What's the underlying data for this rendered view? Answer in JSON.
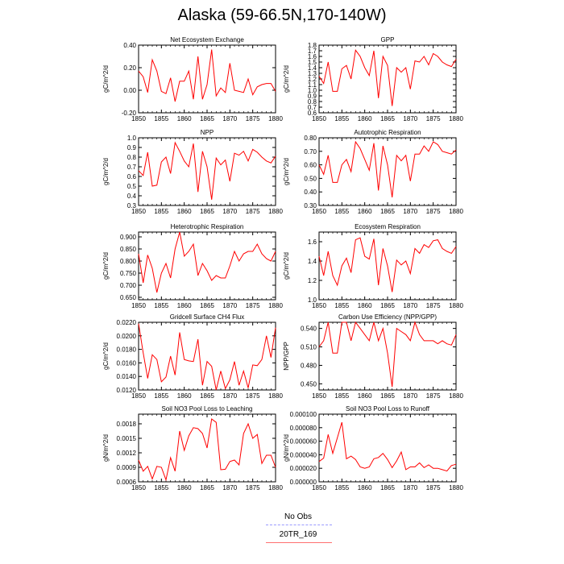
{
  "title": "Alaska (59-66.5N,170-140W)",
  "legend": {
    "items": [
      {
        "name": "No Obs",
        "color": "#9a9aff",
        "dash": "4,3"
      },
      {
        "name": "20TR_169",
        "color": "#ff7070",
        "dash": ""
      }
    ]
  },
  "chart_data": [
    {
      "type": "line",
      "title": "Net Ecosystem Exchange",
      "ylabel": "gC/m^2/d",
      "xlim": [
        1850,
        1880
      ],
      "xticks": [
        "1850",
        "1855",
        "1860",
        "1865",
        "1870",
        "1875",
        "1880"
      ],
      "ylim": [
        -0.2,
        0.4
      ],
      "yticks": [
        "-0.20",
        "0.00",
        "0.20",
        "0.40"
      ],
      "x": [
        1850,
        1851,
        1852,
        1853,
        1854,
        1855,
        1856,
        1857,
        1858,
        1859,
        1860,
        1861,
        1862,
        1863,
        1864,
        1865,
        1866,
        1867,
        1868,
        1869,
        1870,
        1871,
        1872,
        1873,
        1874,
        1875,
        1876,
        1877,
        1878,
        1879,
        1880
      ],
      "series": [
        {
          "name": "20TR_169",
          "color": "#ff0000",
          "values": [
            0.17,
            0.12,
            -0.02,
            0.27,
            0.17,
            -0.01,
            -0.03,
            0.11,
            -0.1,
            0.08,
            0.08,
            0.17,
            -0.08,
            0.3,
            -0.08,
            0.05,
            0.36,
            -0.05,
            0.02,
            -0.02,
            0.24,
            0.0,
            -0.01,
            -0.02,
            0.1,
            -0.04,
            0.03,
            0.05,
            0.06,
            0.06,
            -0.01
          ]
        }
      ]
    },
    {
      "type": "line",
      "title": "GPP",
      "ylabel": "gC/m^2/d",
      "xlim": [
        1850,
        1880
      ],
      "xticks": [
        "1850",
        "1855",
        "1860",
        "1865",
        "1870",
        "1875",
        "1880"
      ],
      "ylim": [
        0.6,
        1.8
      ],
      "yticks": [
        "0.6",
        "0.7",
        "0.8",
        "0.9",
        "1.0",
        "1.1",
        "1.2",
        "1.3",
        "1.4",
        "1.5",
        "1.6",
        "1.7",
        "1.8"
      ],
      "x": [
        1850,
        1851,
        1852,
        1853,
        1854,
        1855,
        1856,
        1857,
        1858,
        1859,
        1860,
        1861,
        1862,
        1863,
        1864,
        1865,
        1866,
        1867,
        1868,
        1869,
        1870,
        1871,
        1872,
        1873,
        1874,
        1875,
        1876,
        1877,
        1878,
        1879,
        1880
      ],
      "series": [
        {
          "name": "20TR_169",
          "color": "#ff0000",
          "values": [
            1.25,
            1.12,
            1.5,
            0.98,
            0.98,
            1.38,
            1.44,
            1.2,
            1.71,
            1.6,
            1.4,
            1.26,
            1.7,
            0.86,
            1.6,
            1.44,
            0.72,
            1.4,
            1.32,
            1.4,
            1.02,
            1.52,
            1.5,
            1.6,
            1.45,
            1.65,
            1.6,
            1.5,
            1.45,
            1.42,
            1.55
          ]
        }
      ]
    },
    {
      "type": "line",
      "title": "NPP",
      "ylabel": "gC/m^2/d",
      "xlim": [
        1850,
        1880
      ],
      "xticks": [
        "1850",
        "1855",
        "1860",
        "1865",
        "1870",
        "1875",
        "1880"
      ],
      "ylim": [
        0.3,
        1.0
      ],
      "yticks": [
        "0.3",
        "0.4",
        "0.5",
        "0.6",
        "0.7",
        "0.8",
        "0.9",
        "1.0"
      ],
      "x": [
        1850,
        1851,
        1852,
        1853,
        1854,
        1855,
        1856,
        1857,
        1858,
        1859,
        1860,
        1861,
        1862,
        1863,
        1864,
        1865,
        1866,
        1867,
        1868,
        1869,
        1870,
        1871,
        1872,
        1873,
        1874,
        1875,
        1876,
        1877,
        1878,
        1879,
        1880
      ],
      "series": [
        {
          "name": "20TR_169",
          "color": "#ff0000",
          "values": [
            0.66,
            0.61,
            0.85,
            0.5,
            0.51,
            0.75,
            0.8,
            0.63,
            0.95,
            0.86,
            0.76,
            0.7,
            0.94,
            0.44,
            0.86,
            0.7,
            0.36,
            0.79,
            0.72,
            0.77,
            0.55,
            0.84,
            0.82,
            0.86,
            0.76,
            0.88,
            0.85,
            0.8,
            0.76,
            0.74,
            0.81
          ]
        }
      ]
    },
    {
      "type": "line",
      "title": "Autotrophic Respiration",
      "ylabel": "gC/m^2/d",
      "xlim": [
        1850,
        1880
      ],
      "xticks": [
        "1850",
        "1855",
        "1860",
        "1865",
        "1870",
        "1875",
        "1880"
      ],
      "ylim": [
        0.3,
        0.8
      ],
      "yticks": [
        "0.30",
        "0.40",
        "0.50",
        "0.60",
        "0.70",
        "0.80"
      ],
      "x": [
        1850,
        1851,
        1852,
        1853,
        1854,
        1855,
        1856,
        1857,
        1858,
        1859,
        1860,
        1861,
        1862,
        1863,
        1864,
        1865,
        1866,
        1867,
        1868,
        1869,
        1870,
        1871,
        1872,
        1873,
        1874,
        1875,
        1876,
        1877,
        1878,
        1879,
        1880
      ],
      "series": [
        {
          "name": "20TR_169",
          "color": "#ff0000",
          "values": [
            0.6,
            0.53,
            0.67,
            0.47,
            0.47,
            0.6,
            0.64,
            0.55,
            0.77,
            0.72,
            0.64,
            0.56,
            0.76,
            0.41,
            0.74,
            0.6,
            0.36,
            0.67,
            0.63,
            0.67,
            0.48,
            0.68,
            0.68,
            0.74,
            0.7,
            0.77,
            0.75,
            0.7,
            0.69,
            0.68,
            0.71
          ]
        }
      ]
    },
    {
      "type": "line",
      "title": "Heterotrophic Respiration",
      "ylabel": "gC/m^2/d",
      "xlim": [
        1850,
        1880
      ],
      "xticks": [
        "1850",
        "1855",
        "1860",
        "1865",
        "1870",
        "1875",
        "1880"
      ],
      "ylim": [
        0.64,
        0.92
      ],
      "yticks": [
        "0.650",
        "0.700",
        "0.750",
        "0.800",
        "0.850",
        "0.900"
      ],
      "x": [
        1850,
        1851,
        1852,
        1853,
        1854,
        1855,
        1856,
        1857,
        1858,
        1859,
        1860,
        1861,
        1862,
        1863,
        1864,
        1865,
        1866,
        1867,
        1868,
        1869,
        1870,
        1871,
        1872,
        1873,
        1874,
        1875,
        1876,
        1877,
        1878,
        1879,
        1880
      ],
      "series": [
        {
          "name": "20TR_169",
          "color": "#ff0000",
          "values": [
            0.83,
            0.71,
            0.825,
            0.77,
            0.67,
            0.75,
            0.79,
            0.73,
            0.85,
            0.92,
            0.82,
            0.84,
            0.87,
            0.74,
            0.79,
            0.76,
            0.72,
            0.74,
            0.73,
            0.73,
            0.78,
            0.84,
            0.8,
            0.83,
            0.84,
            0.84,
            0.87,
            0.83,
            0.81,
            0.8,
            0.84
          ]
        }
      ]
    },
    {
      "type": "line",
      "title": "Ecosystem Respiration",
      "ylabel": "gC/m^2/d",
      "xlim": [
        1850,
        1880
      ],
      "xticks": [
        "1850",
        "1855",
        "1860",
        "1865",
        "1870",
        "1875",
        "1880"
      ],
      "ylim": [
        1.0,
        1.7
      ],
      "yticks": [
        "1.0",
        "1.2",
        "1.4",
        "1.6"
      ],
      "x": [
        1850,
        1851,
        1852,
        1853,
        1854,
        1855,
        1856,
        1857,
        1858,
        1859,
        1860,
        1861,
        1862,
        1863,
        1864,
        1865,
        1866,
        1867,
        1868,
        1869,
        1870,
        1871,
        1872,
        1873,
        1874,
        1875,
        1876,
        1877,
        1878,
        1879,
        1880
      ],
      "series": [
        {
          "name": "20TR_169",
          "color": "#ff0000",
          "values": [
            1.45,
            1.25,
            1.5,
            1.25,
            1.15,
            1.35,
            1.43,
            1.28,
            1.62,
            1.64,
            1.45,
            1.42,
            1.63,
            1.15,
            1.53,
            1.35,
            1.08,
            1.41,
            1.36,
            1.4,
            1.27,
            1.53,
            1.48,
            1.57,
            1.54,
            1.61,
            1.62,
            1.53,
            1.5,
            1.48,
            1.55
          ]
        }
      ]
    },
    {
      "type": "line",
      "title": "Gridcell Surface CH4 Flux",
      "ylabel": "gC/m^2/d",
      "xlim": [
        1850,
        1880
      ],
      "xticks": [
        "1850",
        "1855",
        "1860",
        "1865",
        "1870",
        "1875",
        "1880"
      ],
      "ylim": [
        0.012,
        0.022
      ],
      "yticks": [
        "0.0120",
        "0.0140",
        "0.0160",
        "0.0180",
        "0.0200",
        "0.0220"
      ],
      "x": [
        1850,
        1851,
        1852,
        1853,
        1854,
        1855,
        1856,
        1857,
        1858,
        1859,
        1860,
        1861,
        1862,
        1863,
        1864,
        1865,
        1866,
        1867,
        1868,
        1869,
        1870,
        1871,
        1872,
        1873,
        1874,
        1875,
        1876,
        1877,
        1878,
        1879,
        1880
      ],
      "series": [
        {
          "name": "20TR_169",
          "color": "#ff0000",
          "values": [
            0.0218,
            0.0175,
            0.0137,
            0.0172,
            0.0165,
            0.0132,
            0.0139,
            0.017,
            0.0142,
            0.0205,
            0.0165,
            0.0163,
            0.0162,
            0.0195,
            0.0127,
            0.0162,
            0.0155,
            0.012,
            0.0148,
            0.0122,
            0.0135,
            0.0162,
            0.0127,
            0.0148,
            0.0123,
            0.0157,
            0.0156,
            0.0165,
            0.02,
            0.0168,
            0.0212
          ]
        }
      ]
    },
    {
      "type": "line",
      "title": "Carbon Use Efficiency (NPP/GPP)",
      "ylabel": "NPP/GPP",
      "xlim": [
        1850,
        1880
      ],
      "xticks": [
        "1850",
        "1855",
        "1860",
        "1865",
        "1870",
        "1875",
        "1880"
      ],
      "ylim": [
        0.44,
        0.55
      ],
      "yticks": [
        "0.450",
        "0.480",
        "0.510",
        "0.540"
      ],
      "x": [
        1850,
        1851,
        1852,
        1853,
        1854,
        1855,
        1856,
        1857,
        1858,
        1859,
        1860,
        1861,
        1862,
        1863,
        1864,
        1865,
        1866,
        1867,
        1868,
        1869,
        1870,
        1871,
        1872,
        1873,
        1874,
        1875,
        1876,
        1877,
        1878,
        1879,
        1880
      ],
      "series": [
        {
          "name": "20TR_169",
          "color": "#ff0000",
          "values": [
            0.51,
            0.52,
            0.55,
            0.5,
            0.5,
            0.55,
            0.55,
            0.52,
            0.55,
            0.54,
            0.53,
            0.52,
            0.55,
            0.52,
            0.54,
            0.5,
            0.445,
            0.54,
            0.535,
            0.53,
            0.52,
            0.55,
            0.53,
            0.52,
            0.52,
            0.52,
            0.515,
            0.52,
            0.515,
            0.513,
            0.53
          ]
        }
      ]
    },
    {
      "type": "line",
      "title": "Soil NO3 Pool Loss to Leaching",
      "ylabel": "gN/m^2/d",
      "xlim": [
        1850,
        1880
      ],
      "xticks": [
        "1850",
        "1855",
        "1860",
        "1865",
        "1870",
        "1875",
        "1880"
      ],
      "ylim": [
        0.0006,
        0.002
      ],
      "yticks": [
        "0.0006",
        "0.0009",
        "0.0012",
        "0.0015",
        "0.0018"
      ],
      "x": [
        1850,
        1851,
        1852,
        1853,
        1854,
        1855,
        1856,
        1857,
        1858,
        1859,
        1860,
        1861,
        1862,
        1863,
        1864,
        1865,
        1866,
        1867,
        1868,
        1869,
        1870,
        1871,
        1872,
        1873,
        1874,
        1875,
        1876,
        1877,
        1878,
        1879,
        1880
      ],
      "series": [
        {
          "name": "20TR_169",
          "color": "#ff0000",
          "values": [
            0.00105,
            0.00082,
            0.00092,
            0.00066,
            0.00092,
            0.0009,
            0.00064,
            0.0011,
            0.00082,
            0.00165,
            0.00125,
            0.00155,
            0.00172,
            0.0017,
            0.0016,
            0.0013,
            0.0019,
            0.00183,
            0.00085,
            0.00086,
            0.00102,
            0.00105,
            0.00095,
            0.0016,
            0.0018,
            0.0015,
            0.00158,
            0.00098,
            0.00115,
            0.00115,
            0.0009
          ]
        }
      ]
    },
    {
      "type": "line",
      "title": "Soil NO3 Pool Loss to Runoff",
      "ylabel": "gN/m^2/d",
      "xlim": [
        1850,
        1880
      ],
      "xticks": [
        "1850",
        "1855",
        "1860",
        "1865",
        "1870",
        "1875",
        "1880"
      ],
      "ylim": [
        0,
        0.0001
      ],
      "yticks": [
        "0.000000",
        "0.000020",
        "0.000040",
        "0.000060",
        "0.000080",
        "0.000100"
      ],
      "x": [
        1850,
        1851,
        1852,
        1853,
        1854,
        1855,
        1856,
        1857,
        1858,
        1859,
        1860,
        1861,
        1862,
        1863,
        1864,
        1865,
        1866,
        1867,
        1868,
        1869,
        1870,
        1871,
        1872,
        1873,
        1874,
        1875,
        1876,
        1877,
        1878,
        1879,
        1880
      ],
      "series": [
        {
          "name": "20TR_169",
          "color": "#ff0000",
          "values": [
            3e-05,
            3.5e-05,
            7e-05,
            4.2e-05,
            6.5e-05,
            8.8e-05,
            3.4e-05,
            3.8e-05,
            3.3e-05,
            2.2e-05,
            2e-05,
            2.2e-05,
            3.4e-05,
            3.6e-05,
            4.2e-05,
            3.3e-05,
            2.1e-05,
            3.1e-05,
            4.4e-05,
            1.8e-05,
            2.2e-05,
            2.2e-05,
            2.8e-05,
            2.1e-05,
            2.5e-05,
            2e-05,
            2e-05,
            1.8e-05,
            1.6e-05,
            2.4e-05,
            2.6e-05
          ]
        }
      ]
    }
  ]
}
